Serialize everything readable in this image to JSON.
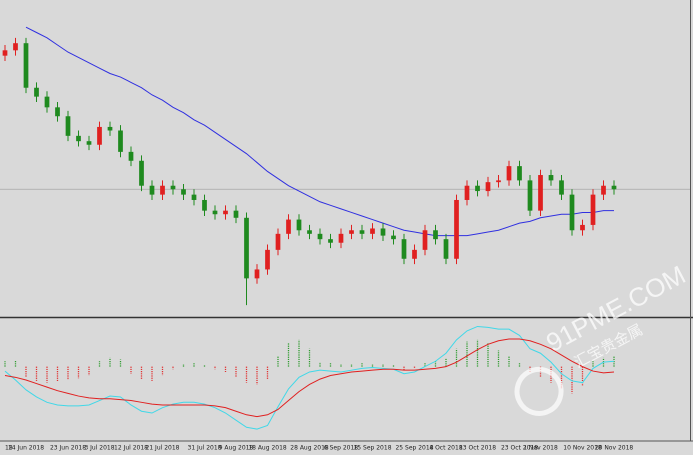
{
  "chart_data": [
    {
      "type": "candlestick",
      "categories": [
        "18",
        null,
        "14 Jun 2018",
        null,
        null,
        null,
        "23 Jun 2018",
        null,
        null,
        "3 Jul 2018",
        null,
        null,
        "12 Jul 2018",
        null,
        null,
        "21 Jul 2018",
        null,
        null,
        null,
        "31 Jul 2018",
        null,
        null,
        "9 Aug 2018",
        null,
        null,
        "18 Aug 2018",
        null,
        null,
        null,
        "28 Aug 2018",
        null,
        null,
        "6 Sep 2018",
        null,
        null,
        "15 Sep 2018",
        null,
        null,
        null,
        "25 Sep 2018",
        null,
        null,
        "4 Oct 2018",
        null,
        null,
        "13 Oct 2018",
        null,
        null,
        null,
        "23 Oct 2018",
        null,
        "1 Nov 2018",
        null,
        null,
        null,
        "10 Nov 2018",
        null,
        null,
        "20 Nov 2018"
      ],
      "open": [
        1300,
        1303,
        1307,
        1282,
        1277,
        1271,
        1266,
        1255,
        1252,
        1250,
        1260,
        1258,
        1246,
        1241,
        1227,
        1222,
        1227,
        1225,
        1222,
        1219,
        1213,
        1211,
        1213,
        1209,
        1175,
        1180,
        1191,
        1200,
        1208,
        1202,
        1200,
        1197,
        1195,
        1200,
        1202,
        1200,
        1203,
        1199,
        1197,
        1186,
        1191,
        1202,
        1197,
        1186,
        1219,
        1227,
        1224,
        1229,
        1230,
        1238,
        1230,
        1213,
        1233,
        1230,
        1222,
        1202,
        1205,
        1222,
        1227
      ],
      "high": [
        1306,
        1310,
        1310,
        1285,
        1280,
        1274,
        1269,
        1258,
        1255,
        1263,
        1263,
        1261,
        1249,
        1244,
        1230,
        1230,
        1230,
        1228,
        1225,
        1222,
        1216,
        1216,
        1216,
        1212,
        1183,
        1194,
        1203,
        1211,
        1211,
        1205,
        1203,
        1200,
        1203,
        1205,
        1205,
        1206,
        1206,
        1202,
        1200,
        1194,
        1205,
        1205,
        1200,
        1222,
        1230,
        1230,
        1232,
        1233,
        1241,
        1241,
        1233,
        1236,
        1236,
        1233,
        1225,
        1208,
        1225,
        1230,
        1230
      ],
      "low": [
        1297,
        1300,
        1279,
        1274,
        1268,
        1263,
        1252,
        1249,
        1247,
        1247,
        1255,
        1243,
        1238,
        1224,
        1219,
        1219,
        1222,
        1219,
        1216,
        1210,
        1208,
        1208,
        1206,
        1160,
        1172,
        1177,
        1188,
        1197,
        1199,
        1197,
        1194,
        1192,
        1192,
        1197,
        1197,
        1197,
        1196,
        1194,
        1183,
        1183,
        1188,
        1194,
        1183,
        1183,
        1216,
        1221,
        1221,
        1226,
        1227,
        1227,
        1210,
        1210,
        1227,
        1219,
        1199,
        1199,
        1202,
        1219,
        1222
      ],
      "close": [
        1303,
        1307,
        1282,
        1277,
        1271,
        1266,
        1255,
        1252,
        1250,
        1260,
        1258,
        1246,
        1241,
        1227,
        1222,
        1227,
        1225,
        1222,
        1219,
        1213,
        1211,
        1213,
        1209,
        1175,
        1180,
        1191,
        1200,
        1208,
        1202,
        1200,
        1197,
        1195,
        1200,
        1202,
        1200,
        1203,
        1199,
        1197,
        1186,
        1191,
        1202,
        1197,
        1186,
        1219,
        1227,
        1224,
        1229,
        1230,
        1238,
        1230,
        1213,
        1233,
        1230,
        1222,
        1202,
        1205,
        1222,
        1227,
        1225
      ],
      "up_color": "#e02020",
      "down_color": "#1f8a1f",
      "moving_average": {
        "color": "#3030e0",
        "values": [
          null,
          null,
          1316,
          1313,
          1310,
          1306,
          1302,
          1299,
          1296,
          1293,
          1290,
          1288,
          1285,
          1282,
          1278,
          1275,
          1271,
          1268,
          1264,
          1261,
          1257,
          1253,
          1249,
          1245,
          1240,
          1235,
          1231,
          1227,
          1224,
          1221,
          1218,
          1216,
          1214,
          1212,
          1210,
          1208,
          1206,
          1204,
          1202,
          1201,
          1200,
          1199,
          1199,
          1199,
          1199,
          1200,
          1201,
          1202,
          1204,
          1206,
          1207,
          1209,
          1210,
          1211,
          1211,
          1212,
          1212,
          1213,
          1213
        ]
      },
      "current_price": 1225,
      "ylim": [
        1155,
        1329
      ]
    },
    {
      "type": "macd",
      "histogram": {
        "up_color": "#2e9a2e",
        "down_color": "#e03030",
        "values": [
          0.6,
          0.7,
          -1.2,
          -1.6,
          -1.8,
          -1.7,
          -1.5,
          -1.3,
          -1.0,
          0.6,
          1.0,
          0.8,
          -0.8,
          -1.4,
          -1.6,
          -1.0,
          -0.3,
          0.3,
          0.4,
          0.2,
          -0.3,
          -0.6,
          -1.2,
          -1.8,
          -2.0,
          -1.4,
          1.2,
          2.6,
          3.0,
          2.0,
          0.5,
          0.4,
          0.3,
          0.3,
          0.4,
          0.3,
          0.3,
          0.2,
          -0.4,
          -0.2,
          0.4,
          0.6,
          0.9,
          2.0,
          2.8,
          3.0,
          2.6,
          1.8,
          1.2,
          0.4,
          -0.6,
          -1.2,
          -1.8,
          -2.5,
          -3.0,
          -2.2,
          0.6,
          1.0,
          1.2
        ]
      },
      "series": [
        {
          "color": "#40d8e8",
          "values": [
            -0.5,
            -1.5,
            -2.6,
            -3.4,
            -4.0,
            -4.3,
            -4.4,
            -4.4,
            -4.3,
            -3.8,
            -3.3,
            -3.4,
            -4.3,
            -5.0,
            -5.2,
            -4.6,
            -4.2,
            -4.0,
            -4.0,
            -4.2,
            -4.6,
            -5.2,
            -6.0,
            -6.8,
            -7.0,
            -6.6,
            -4.5,
            -2.5,
            -1.2,
            -0.6,
            -0.4,
            -0.5,
            -0.6,
            -0.4,
            -0.2,
            -0.1,
            -0.2,
            -0.3,
            -0.8,
            -0.6,
            0.0,
            0.6,
            1.5,
            3.0,
            4.0,
            4.5,
            4.4,
            4.2,
            4.2,
            3.5,
            2.0,
            1.5,
            0.5,
            -0.8,
            -1.6,
            -1.8,
            -0.2,
            0.5,
            0.6
          ]
        },
        {
          "color": "#e02020",
          "values": [
            -1.0,
            -1.2,
            -1.5,
            -1.9,
            -2.3,
            -2.7,
            -3.0,
            -3.3,
            -3.5,
            -3.6,
            -3.6,
            -3.7,
            -3.8,
            -4.0,
            -4.2,
            -4.3,
            -4.3,
            -4.3,
            -4.3,
            -4.3,
            -4.4,
            -4.6,
            -5.0,
            -5.4,
            -5.6,
            -5.4,
            -4.8,
            -3.8,
            -2.8,
            -2.0,
            -1.4,
            -1.0,
            -0.8,
            -0.6,
            -0.5,
            -0.4,
            -0.3,
            -0.3,
            -0.4,
            -0.4,
            -0.3,
            -0.2,
            0.0,
            0.5,
            1.2,
            1.9,
            2.5,
            2.9,
            3.1,
            3.1,
            2.9,
            2.5,
            2.0,
            1.3,
            0.6,
            0.0,
            -0.5,
            -0.7,
            -0.6
          ]
        }
      ],
      "ylim": [
        -8,
        5
      ]
    }
  ],
  "watermark": {
    "site": "91PME.COM",
    "name": "汇宝贵金属"
  }
}
